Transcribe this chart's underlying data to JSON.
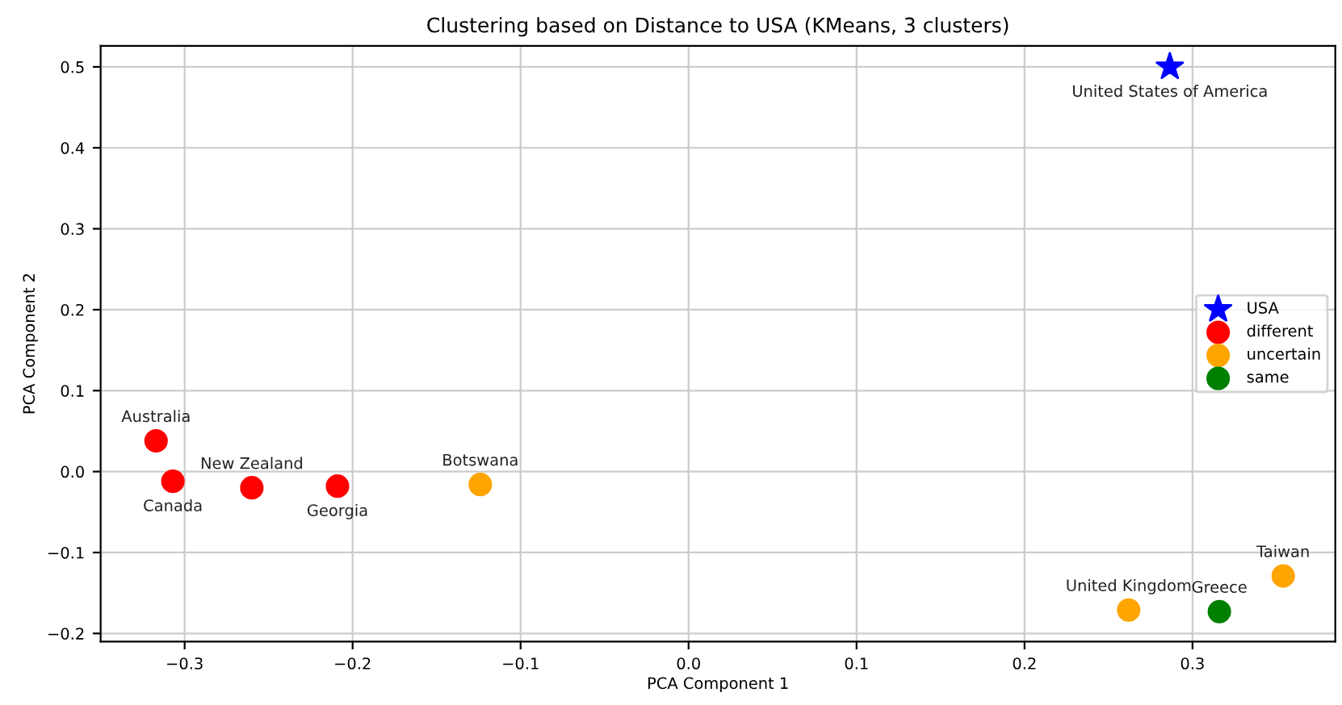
{
  "chart_data": {
    "type": "scatter",
    "title": "Clustering based on Distance to USA (KMeans, 3 clusters)",
    "xlabel": "PCA Component 1",
    "ylabel": "PCA Component 2",
    "xlim": [
      -0.35,
      0.385
    ],
    "ylim": [
      -0.21,
      0.526
    ],
    "xticks": [
      {
        "value": -0.3,
        "label": "−0.3"
      },
      {
        "value": -0.2,
        "label": "−0.2"
      },
      {
        "value": -0.1,
        "label": "−0.1"
      },
      {
        "value": 0.0,
        "label": "0.0"
      },
      {
        "value": 0.1,
        "label": "0.1"
      },
      {
        "value": 0.2,
        "label": "0.2"
      },
      {
        "value": 0.3,
        "label": "0.3"
      }
    ],
    "yticks": [
      {
        "value": -0.2,
        "label": "−0.2"
      },
      {
        "value": -0.1,
        "label": "−0.1"
      },
      {
        "value": 0.0,
        "label": "0.0"
      },
      0.1,
      0.2,
      0.3,
      0.4,
      0.5
    ],
    "grid": true,
    "legend": "right",
    "series": [
      {
        "name": "USA",
        "color": "#0000ff",
        "marker": "star",
        "x": [
          0.2865
        ],
        "values": [
          0.5
        ]
      },
      {
        "name": "different",
        "color": "#ff0000",
        "marker": "circle",
        "x": [
          -0.317,
          -0.307,
          -0.26,
          -0.209
        ],
        "values": [
          0.038,
          -0.012,
          -0.02,
          -0.018
        ]
      },
      {
        "name": "uncertain",
        "color": "#ffa500",
        "marker": "circle",
        "x": [
          -0.124,
          0.262,
          0.354
        ],
        "values": [
          -0.016,
          -0.171,
          -0.129
        ]
      },
      {
        "name": "same",
        "color": "#008000",
        "marker": "circle",
        "x": [
          0.316
        ],
        "values": [
          -0.173
        ]
      }
    ],
    "annotations": [
      {
        "text": "United States of America",
        "x": 0.2865,
        "y": 0.5
      },
      {
        "text": "Australia",
        "x": -0.317,
        "y": 0.038
      },
      {
        "text": "Canada",
        "x": -0.307,
        "y": -0.012
      },
      {
        "text": "New Zealand",
        "x": -0.26,
        "y": -0.02
      },
      {
        "text": "Georgia",
        "x": -0.209,
        "y": -0.018
      },
      {
        "text": "Botswana",
        "x": -0.124,
        "y": -0.016
      },
      {
        "text": "United Kingdom",
        "x": 0.262,
        "y": -0.171
      },
      {
        "text": "Taiwan",
        "x": 0.354,
        "y": -0.129
      },
      {
        "text": "Greece",
        "x": 0.316,
        "y": -0.173
      }
    ]
  }
}
